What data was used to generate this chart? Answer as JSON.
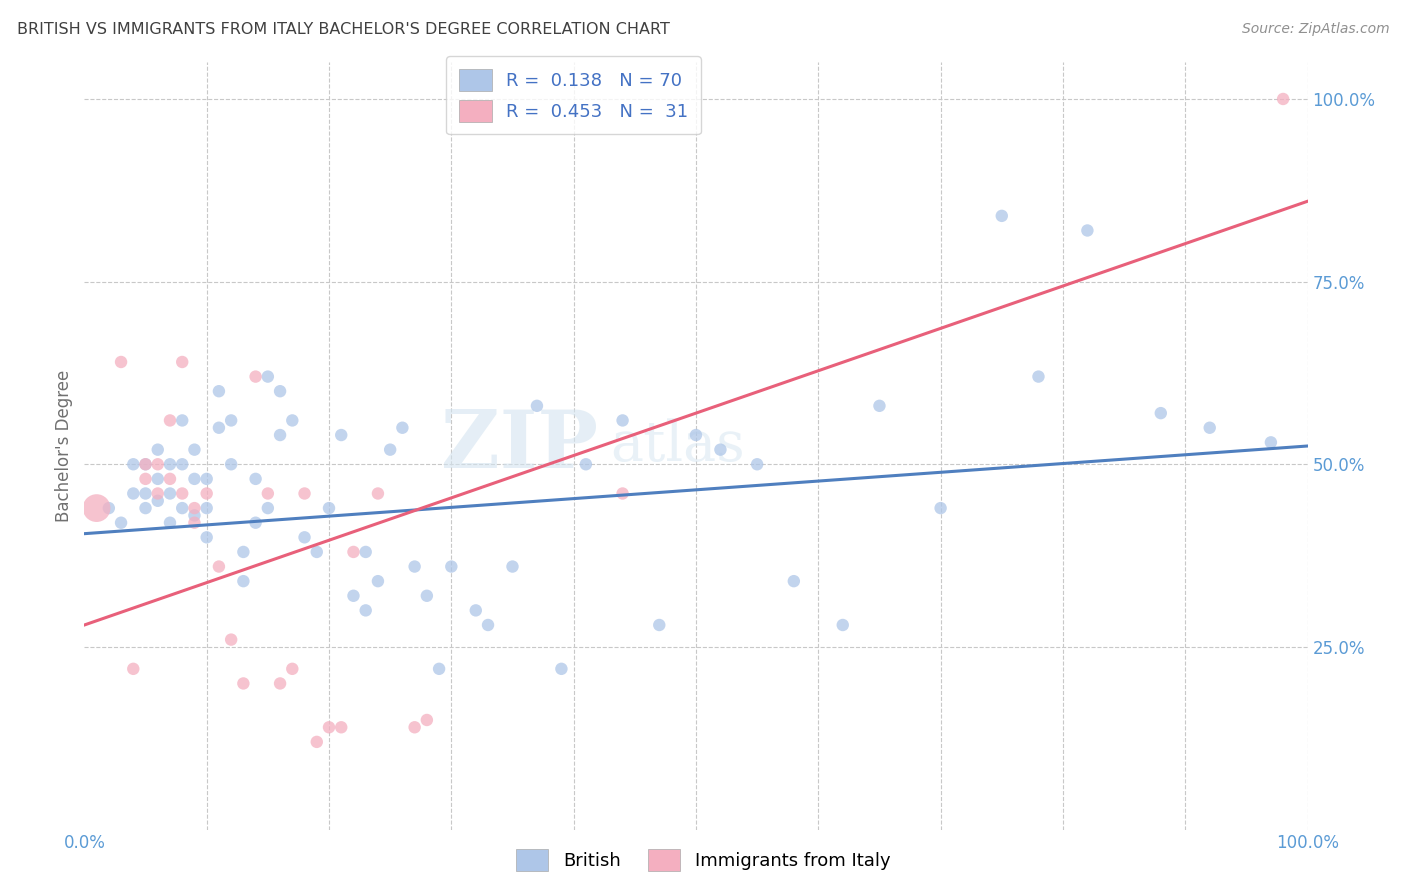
{
  "title": "BRITISH VS IMMIGRANTS FROM ITALY BACHELOR'S DEGREE CORRELATION CHART",
  "source": "Source: ZipAtlas.com",
  "ylabel": "Bachelor's Degree",
  "watermark_zip": "ZIP",
  "watermark_atlas": "atlas",
  "blue_R": 0.138,
  "blue_N": 70,
  "pink_R": 0.453,
  "pink_N": 31,
  "blue_color": "#aec6e8",
  "pink_color": "#f4afc0",
  "blue_line_color": "#4f7fbf",
  "pink_line_color": "#e8607a",
  "legend_text_color": "#4472c4",
  "tick_label_color": "#5b9bd5",
  "title_color": "#404040",
  "background_color": "#ffffff",
  "grid_color": "#c8c8c8",
  "blue_line_x0": 0.0,
  "blue_line_y0": 0.405,
  "blue_line_x1": 1.0,
  "blue_line_y1": 0.525,
  "pink_line_x0": 0.0,
  "pink_line_y0": 0.28,
  "pink_line_x1": 1.0,
  "pink_line_y1": 0.86,
  "blue_scatter_x": [
    0.02,
    0.03,
    0.04,
    0.04,
    0.05,
    0.05,
    0.05,
    0.06,
    0.06,
    0.06,
    0.07,
    0.07,
    0.07,
    0.08,
    0.08,
    0.08,
    0.09,
    0.09,
    0.09,
    0.1,
    0.1,
    0.1,
    0.11,
    0.11,
    0.12,
    0.12,
    0.13,
    0.13,
    0.14,
    0.14,
    0.15,
    0.15,
    0.16,
    0.16,
    0.17,
    0.18,
    0.19,
    0.2,
    0.21,
    0.22,
    0.23,
    0.23,
    0.24,
    0.25,
    0.26,
    0.27,
    0.28,
    0.29,
    0.3,
    0.32,
    0.33,
    0.35,
    0.37,
    0.39,
    0.41,
    0.44,
    0.47,
    0.5,
    0.52,
    0.55,
    0.58,
    0.62,
    0.65,
    0.7,
    0.75,
    0.78,
    0.82,
    0.88,
    0.92,
    0.97
  ],
  "blue_scatter_y": [
    0.44,
    0.42,
    0.5,
    0.46,
    0.5,
    0.46,
    0.44,
    0.52,
    0.48,
    0.45,
    0.5,
    0.46,
    0.42,
    0.56,
    0.5,
    0.44,
    0.52,
    0.48,
    0.43,
    0.48,
    0.44,
    0.4,
    0.6,
    0.55,
    0.56,
    0.5,
    0.38,
    0.34,
    0.48,
    0.42,
    0.62,
    0.44,
    0.6,
    0.54,
    0.56,
    0.4,
    0.38,
    0.44,
    0.54,
    0.32,
    0.3,
    0.38,
    0.34,
    0.52,
    0.55,
    0.36,
    0.32,
    0.22,
    0.36,
    0.3,
    0.28,
    0.36,
    0.58,
    0.22,
    0.5,
    0.56,
    0.28,
    0.54,
    0.52,
    0.5,
    0.34,
    0.28,
    0.58,
    0.44,
    0.84,
    0.62,
    0.82,
    0.57,
    0.55,
    0.53
  ],
  "blue_scatter_size": [
    80,
    80,
    80,
    80,
    80,
    80,
    80,
    80,
    80,
    80,
    80,
    80,
    80,
    80,
    80,
    80,
    80,
    80,
    80,
    80,
    80,
    80,
    80,
    80,
    80,
    80,
    80,
    80,
    80,
    80,
    80,
    80,
    80,
    80,
    80,
    80,
    80,
    80,
    80,
    80,
    80,
    80,
    80,
    80,
    80,
    80,
    80,
    80,
    80,
    80,
    80,
    80,
    80,
    80,
    80,
    80,
    80,
    80,
    80,
    80,
    80,
    80,
    80,
    80,
    80,
    80,
    80,
    80,
    80,
    80
  ],
  "pink_scatter_x": [
    0.01,
    0.03,
    0.04,
    0.05,
    0.05,
    0.06,
    0.06,
    0.07,
    0.07,
    0.08,
    0.08,
    0.09,
    0.09,
    0.1,
    0.11,
    0.12,
    0.13,
    0.14,
    0.15,
    0.16,
    0.17,
    0.18,
    0.19,
    0.2,
    0.21,
    0.22,
    0.24,
    0.27,
    0.28,
    0.44,
    0.98
  ],
  "pink_scatter_y": [
    0.44,
    0.64,
    0.22,
    0.5,
    0.48,
    0.5,
    0.46,
    0.48,
    0.56,
    0.64,
    0.46,
    0.44,
    0.42,
    0.46,
    0.36,
    0.26,
    0.2,
    0.62,
    0.46,
    0.2,
    0.22,
    0.46,
    0.12,
    0.14,
    0.14,
    0.38,
    0.46,
    0.14,
    0.15,
    0.46,
    1.0
  ],
  "pink_scatter_size": [
    400,
    80,
    80,
    80,
    80,
    80,
    80,
    80,
    80,
    80,
    80,
    80,
    80,
    80,
    80,
    80,
    80,
    80,
    80,
    80,
    80,
    80,
    80,
    80,
    80,
    80,
    80,
    80,
    80,
    80,
    80
  ],
  "xlim": [
    0.0,
    1.0
  ],
  "ylim": [
    0.0,
    1.05
  ],
  "xticks": [
    0.0,
    0.1,
    0.2,
    0.3,
    0.4,
    0.5,
    0.6,
    0.7,
    0.8,
    0.9,
    1.0
  ],
  "xtick_labels": [
    "0.0%",
    "",
    "",
    "",
    "",
    "",
    "",
    "",
    "",
    "",
    "100.0%"
  ],
  "ytick_positions": [
    0.25,
    0.5,
    0.75,
    1.0
  ],
  "ytick_labels_right": [
    "25.0%",
    "50.0%",
    "75.0%",
    "100.0%"
  ],
  "figsize": [
    14.06,
    8.92
  ],
  "dpi": 100
}
